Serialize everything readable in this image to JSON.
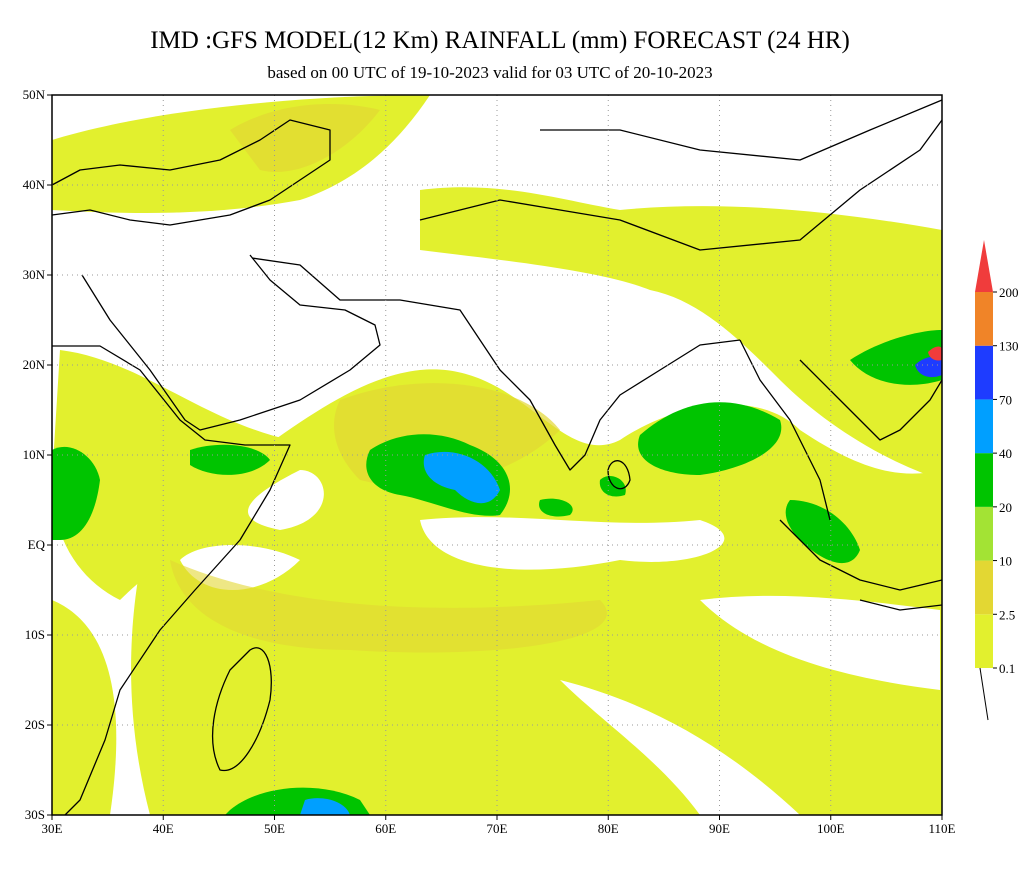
{
  "map": {
    "title": "IMD :GFS MODEL(12 Km) RAINFALL (mm) FORECAST (24 HR)",
    "subtitle": "based on 00 UTC of 19-10-2023 valid for 03 UTC of 20-10-2023",
    "lat_labels": [
      "50N",
      "40N",
      "30N",
      "20N",
      "10N",
      "EQ",
      "10S",
      "20S",
      "30S"
    ],
    "lon_labels": [
      "30E",
      "40E",
      "50E",
      "60E",
      "70E",
      "80E",
      "90E",
      "100E",
      "110E"
    ],
    "legend": {
      "levels": [
        0.1,
        2.5,
        10,
        20,
        40,
        70,
        130,
        200
      ],
      "colors": [
        "#e2f02e",
        "#e3d733",
        "#a3e334",
        "#00c400",
        "#009fff",
        "#1e3cff",
        "#f08428",
        "#f03c3c"
      ]
    }
  }
}
